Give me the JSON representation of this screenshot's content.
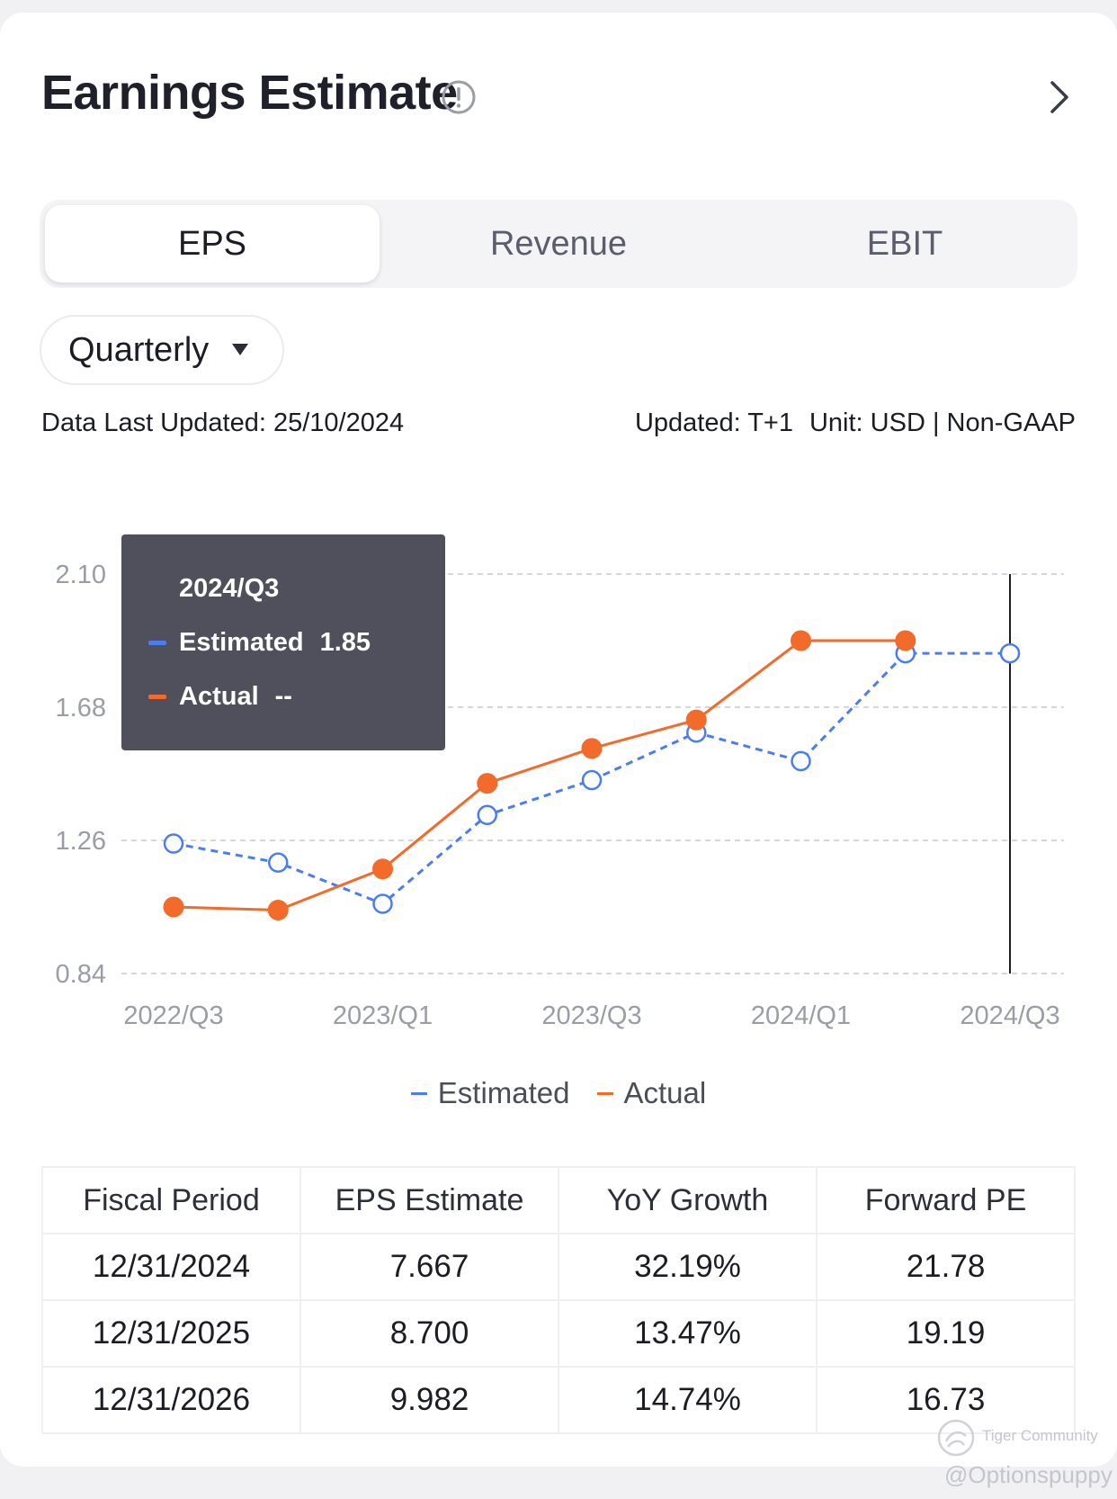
{
  "header": {
    "title": "Earnings Estimate"
  },
  "tabs": [
    {
      "label": "EPS",
      "active": true
    },
    {
      "label": "Revenue",
      "active": false
    },
    {
      "label": "EBIT",
      "active": false
    }
  ],
  "period_selector": {
    "selected": "Quarterly"
  },
  "meta": {
    "last_updated": "Data Last Updated: 25/10/2024",
    "update_freq": "Updated: T+1",
    "unit": "Unit: USD | Non-GAAP"
  },
  "tooltip": {
    "period": "2024/Q3",
    "estimated_label": "Estimated",
    "estimated_value": "1.85",
    "actual_label": "Actual",
    "actual_value": "--"
  },
  "legend": {
    "estimated": "Estimated",
    "actual": "Actual"
  },
  "colors": {
    "estimated": "#4a7ef0",
    "actual": "#f26b2a",
    "accent_text": "#1c1d24"
  },
  "chart_data": {
    "type": "line",
    "categories": [
      "2022/Q3",
      "2022/Q4",
      "2023/Q1",
      "2023/Q2",
      "2023/Q3",
      "2023/Q4",
      "2024/Q1",
      "2024/Q2",
      "2024/Q3"
    ],
    "x_tick_labels": [
      "2022/Q3",
      "2023/Q1",
      "2023/Q3",
      "2024/Q1",
      "2024/Q3"
    ],
    "y_ticks": [
      "2.10",
      "1.68",
      "1.26",
      "0.84"
    ],
    "ylim": [
      0.84,
      2.1
    ],
    "series": [
      {
        "name": "Estimated",
        "style": "dashed",
        "values": [
          1.25,
          1.19,
          1.06,
          1.34,
          1.45,
          1.6,
          1.51,
          1.85,
          1.85
        ]
      },
      {
        "name": "Actual",
        "style": "solid",
        "values": [
          1.05,
          1.04,
          1.17,
          1.44,
          1.55,
          1.64,
          1.89,
          1.89,
          null
        ]
      }
    ],
    "highlight_category": "2024/Q3"
  },
  "table": {
    "headers": [
      "Fiscal Period",
      "EPS Estimate",
      "YoY Growth",
      "Forward PE"
    ],
    "rows": [
      [
        "12/31/2024",
        "7.667",
        "32.19%",
        "21.78"
      ],
      [
        "12/31/2025",
        "8.700",
        "13.47%",
        "19.19"
      ],
      [
        "12/31/2026",
        "9.982",
        "14.74%",
        "16.73"
      ]
    ]
  },
  "watermark": {
    "brand": "Tiger Community",
    "user": "@Optionspuppy"
  }
}
